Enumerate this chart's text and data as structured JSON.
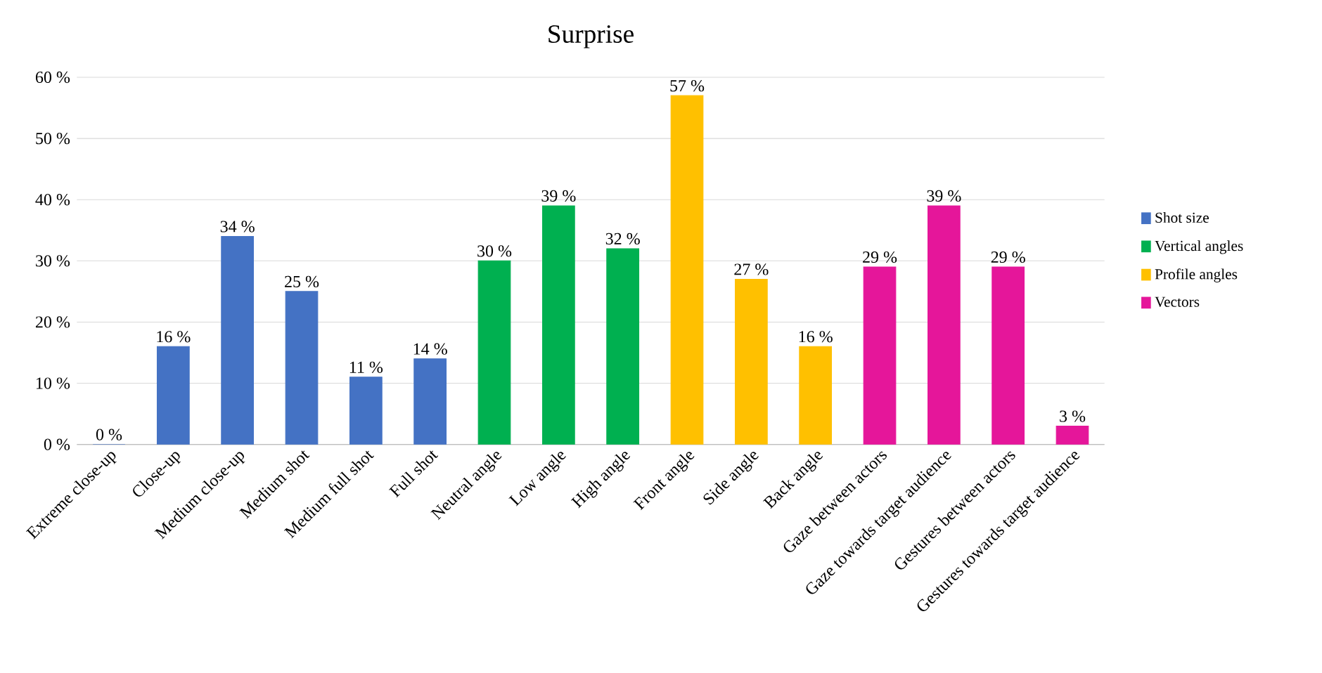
{
  "chart_data": {
    "type": "bar",
    "title": "Surprise",
    "categories": [
      "Extreme close-up",
      "Close-up",
      "Medium close-up",
      "Medium shot",
      "Medium full shot",
      "Full shot",
      "Neutral angle",
      "Low angle",
      "High angle",
      "Front angle",
      "Side angle",
      "Back angle",
      "Gaze between actors",
      "Gaze towards target audience",
      "Gestures between actors",
      "Gestures towards target audience"
    ],
    "series": [
      {
        "name": "Shot size",
        "color": "#4472c4",
        "values": [
          0,
          16,
          34,
          25,
          11,
          14,
          null,
          null,
          null,
          null,
          null,
          null,
          null,
          null,
          null,
          null
        ],
        "value_labels": [
          "0 %",
          "16 %",
          "34 %",
          "25 %",
          "11 %",
          "14 %",
          null,
          null,
          null,
          null,
          null,
          null,
          null,
          null,
          null,
          null
        ]
      },
      {
        "name": "Vertical angles",
        "color": "#00b050",
        "values": [
          null,
          null,
          null,
          null,
          null,
          null,
          30,
          39,
          32,
          null,
          null,
          null,
          null,
          null,
          null,
          null
        ],
        "value_labels": [
          null,
          null,
          null,
          null,
          null,
          null,
          "30 %",
          "39 %",
          "32 %",
          null,
          null,
          null,
          null,
          null,
          null,
          null
        ]
      },
      {
        "name": "Profile angles",
        "color": "#ffc000",
        "values": [
          null,
          null,
          null,
          null,
          null,
          null,
          null,
          null,
          null,
          57,
          27,
          16,
          null,
          null,
          null,
          null
        ],
        "value_labels": [
          null,
          null,
          null,
          null,
          null,
          null,
          null,
          null,
          null,
          "57 %",
          "27 %",
          "16 %",
          null,
          null,
          null,
          null
        ]
      },
      {
        "name": "Vectors",
        "color": "#e5169a",
        "values": [
          null,
          null,
          null,
          null,
          null,
          null,
          null,
          null,
          null,
          null,
          null,
          null,
          29,
          39,
          29,
          3
        ],
        "value_labels": [
          null,
          null,
          null,
          null,
          null,
          null,
          null,
          null,
          null,
          null,
          null,
          null,
          "29 %",
          "39 %",
          "29 %",
          "3 %"
        ]
      }
    ],
    "ylim": [
      0,
      60
    ],
    "yticks": [
      {
        "value": 0,
        "label": "0 %"
      },
      {
        "value": 10,
        "label": "10 %"
      },
      {
        "value": 20,
        "label": "20 %"
      },
      {
        "value": 30,
        "label": "30 %"
      },
      {
        "value": 40,
        "label": "40 %"
      },
      {
        "value": 50,
        "label": "50 %"
      },
      {
        "value": 60,
        "label": "60 %"
      }
    ],
    "grid": "y",
    "legend": "right"
  }
}
